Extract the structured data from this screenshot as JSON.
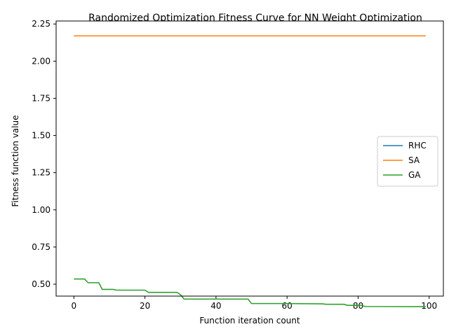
{
  "chart_data": {
    "type": "line",
    "title": "Randomized Optimization Fitness Curve for NN Weight Optimization",
    "xlabel": "Function iteration count",
    "ylabel": "Fitness function value",
    "xlim": [
      -5,
      104
    ],
    "ylim": [
      0.42,
      2.27
    ],
    "xticks": [
      0,
      20,
      40,
      60,
      80,
      100
    ],
    "yticks": [
      0.5,
      0.75,
      1.0,
      1.25,
      1.5,
      1.75,
      2.0,
      2.25
    ],
    "xtick_labels": [
      "0",
      "20",
      "40",
      "60",
      "80",
      "100"
    ],
    "ytick_labels": [
      "0.50",
      "0.75",
      "1.00",
      "1.25",
      "1.50",
      "1.75",
      "2.00",
      "2.25"
    ],
    "legend_position": "center-right",
    "series": [
      {
        "name": "RHC",
        "color": "#1f77b4",
        "points": [
          [
            0,
            2.17
          ],
          [
            99,
            2.17
          ]
        ]
      },
      {
        "name": "SA",
        "color": "#ff7f0e",
        "points": [
          [
            0,
            2.17
          ],
          [
            99,
            2.17
          ]
        ]
      },
      {
        "name": "GA",
        "color": "#2ca02c",
        "points": [
          [
            0,
            0.535
          ],
          [
            3,
            0.535
          ],
          [
            4,
            0.51
          ],
          [
            7,
            0.51
          ],
          [
            8,
            0.465
          ],
          [
            11,
            0.465
          ],
          [
            12,
            0.46
          ],
          [
            20,
            0.46
          ],
          [
            21,
            0.445
          ],
          [
            29,
            0.445
          ],
          [
            30,
            0.43
          ],
          [
            31,
            0.4
          ],
          [
            49,
            0.4
          ],
          [
            50,
            0.37
          ],
          [
            59,
            0.37
          ],
          [
            70,
            0.368
          ],
          [
            71,
            0.365
          ],
          [
            76,
            0.365
          ],
          [
            77,
            0.358
          ],
          [
            81,
            0.358
          ],
          [
            82,
            0.35
          ],
          [
            99,
            0.349
          ]
        ]
      }
    ]
  }
}
